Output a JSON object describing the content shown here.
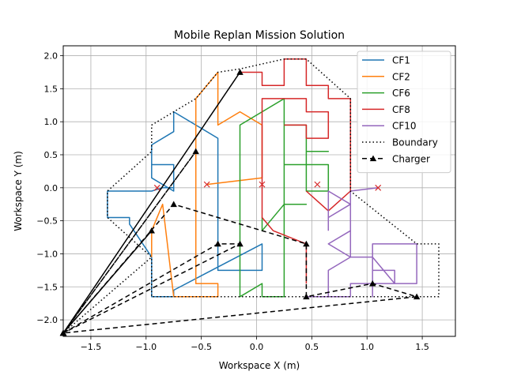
{
  "chart_data": {
    "type": "line",
    "title": "Mobile Replan Mission Solution",
    "xlabel": "Workspace X (m)",
    "ylabel": "Workspace Y (m)",
    "xlim": [
      -1.75,
      1.8
    ],
    "ylim": [
      -2.25,
      2.15
    ],
    "xticks": [
      -1.5,
      -1.0,
      -0.5,
      0.0,
      0.5,
      1.0,
      1.5
    ],
    "xtick_labels": [
      "−1.5",
      "−1.0",
      "−0.5",
      "0.0",
      "0.5",
      "1.0",
      "1.5"
    ],
    "yticks": [
      -2.0,
      -1.5,
      -1.0,
      -0.5,
      0.0,
      0.5,
      1.0,
      1.5,
      2.0
    ],
    "ytick_labels": [
      "−2.0",
      "−1.5",
      "−1.0",
      "−0.5",
      "0.0",
      "0.5",
      "1.0",
      "1.5",
      "2.0"
    ],
    "grid": true,
    "legend_position": "top-right",
    "series": [
      {
        "name": "CF1",
        "color": "#1f77b4",
        "style": "solid",
        "marker": "none",
        "points": [
          [
            -0.75,
            -1.65
          ],
          [
            -0.85,
            -1.65
          ],
          [
            -0.95,
            -1.65
          ],
          [
            -0.95,
            -1.05
          ],
          [
            -1.15,
            -0.55
          ],
          [
            -1.15,
            -0.45
          ],
          [
            -1.35,
            -0.45
          ],
          [
            -1.35,
            -0.05
          ],
          [
            -1.2,
            -0.05
          ],
          [
            -1.15,
            -0.05
          ],
          [
            -0.95,
            -0.05
          ],
          [
            -0.85,
            0.0
          ],
          [
            -0.75,
            0.0
          ],
          [
            -0.75,
            0.35
          ],
          [
            -0.95,
            0.35
          ],
          [
            -0.75,
            0.35
          ],
          [
            -0.75,
            -0.05
          ],
          [
            -0.95,
            0.15
          ],
          [
            -0.95,
            0.65
          ],
          [
            -0.75,
            0.85
          ],
          [
            -0.75,
            1.15
          ],
          [
            -0.35,
            0.75
          ],
          [
            -0.35,
            -1.25
          ],
          [
            0.05,
            -1.25
          ],
          [
            0.05,
            -0.85
          ],
          [
            -0.75,
            -1.55
          ],
          [
            -0.75,
            -1.65
          ]
        ]
      },
      {
        "name": "CF2",
        "color": "#ff7f0e",
        "style": "solid",
        "marker": "none",
        "points": [
          [
            -0.95,
            -1.05
          ],
          [
            -0.95,
            -0.65
          ],
          [
            -0.85,
            -0.25
          ],
          [
            -0.75,
            -1.65
          ],
          [
            -0.35,
            -1.65
          ],
          [
            -0.35,
            -1.45
          ],
          [
            -0.55,
            -1.45
          ],
          [
            -0.55,
            -0.85
          ],
          [
            -0.55,
            -0.05
          ],
          [
            -0.55,
            1.35
          ],
          [
            -0.35,
            1.75
          ],
          [
            -0.35,
            0.95
          ],
          [
            -0.15,
            1.15
          ],
          [
            0.05,
            0.95
          ],
          [
            0.05,
            0.15
          ],
          [
            -0.45,
            0.05
          ],
          [
            -0.45,
            0.05
          ]
        ]
      },
      {
        "name": "CF6",
        "color": "#2ca02c",
        "style": "solid",
        "marker": "none",
        "points": [
          [
            0.05,
            -0.45
          ],
          [
            0.05,
            -0.65
          ],
          [
            0.25,
            -0.25
          ],
          [
            0.45,
            -0.25
          ],
          [
            0.25,
            -0.25
          ],
          [
            0.25,
            0.35
          ],
          [
            0.45,
            0.35
          ],
          [
            0.45,
            -0.05
          ],
          [
            0.65,
            -0.05
          ],
          [
            0.65,
            0.35
          ],
          [
            0.45,
            0.35
          ],
          [
            0.45,
            0.55
          ],
          [
            0.65,
            0.55
          ],
          [
            0.45,
            0.55
          ],
          [
            0.45,
            0.95
          ],
          [
            0.25,
            0.95
          ],
          [
            0.25,
            1.35
          ],
          [
            -0.15,
            0.95
          ],
          [
            -0.15,
            -1.65
          ],
          [
            0.05,
            -1.45
          ],
          [
            0.05,
            -1.65
          ],
          [
            0.25,
            -1.65
          ],
          [
            0.25,
            -0.95
          ],
          [
            0.25,
            -0.25
          ],
          [
            0.25,
            0.95
          ]
        ]
      },
      {
        "name": "CF8",
        "color": "#d62728",
        "style": "solid",
        "marker": "none",
        "points": [
          [
            0.45,
            -1.45
          ],
          [
            0.45,
            -0.85
          ],
          [
            0.15,
            -0.65
          ],
          [
            0.05,
            -0.45
          ],
          [
            0.05,
            -0.45
          ],
          [
            0.05,
            0.05
          ],
          [
            0.05,
            1.35
          ],
          [
            0.45,
            1.35
          ],
          [
            0.45,
            1.15
          ],
          [
            0.65,
            1.15
          ],
          [
            0.65,
            0.75
          ],
          [
            0.45,
            0.75
          ],
          [
            0.45,
            0.95
          ],
          [
            0.25,
            0.95
          ],
          [
            0.25,
            0.95
          ]
        ]
      },
      {
        "name": "CF8",
        "color": "#d62728",
        "style": "solid",
        "marker": "none",
        "points": [
          [
            -0.15,
            1.75
          ],
          [
            0.05,
            1.75
          ],
          [
            0.05,
            1.55
          ],
          [
            0.25,
            1.55
          ],
          [
            0.25,
            1.95
          ],
          [
            0.45,
            1.95
          ],
          [
            0.45,
            1.55
          ],
          [
            0.65,
            1.55
          ],
          [
            0.65,
            1.35
          ],
          [
            0.85,
            1.35
          ],
          [
            0.85,
            -0.05
          ],
          [
            0.65,
            -0.35
          ],
          [
            0.45,
            -0.05
          ],
          [
            0.45,
            -0.05
          ]
        ]
      },
      {
        "name": "CF10",
        "color": "#9467bd",
        "style": "solid",
        "marker": "none",
        "points": [
          [
            0.65,
            -0.65
          ],
          [
            0.65,
            -0.05
          ],
          [
            0.85,
            -0.25
          ],
          [
            0.65,
            -0.45
          ],
          [
            0.85,
            -0.25
          ],
          [
            0.85,
            -0.65
          ],
          [
            0.65,
            -0.85
          ],
          [
            0.85,
            -1.05
          ],
          [
            0.65,
            -1.25
          ],
          [
            0.65,
            -1.65
          ],
          [
            0.45,
            -1.65
          ],
          [
            0.85,
            -1.65
          ],
          [
            0.85,
            -1.45
          ],
          [
            1.05,
            -1.45
          ],
          [
            1.05,
            -1.25
          ],
          [
            1.25,
            -1.25
          ],
          [
            1.25,
            -1.45
          ],
          [
            1.45,
            -1.45
          ],
          [
            1.45,
            -0.85
          ],
          [
            1.05,
            -0.85
          ],
          [
            1.05,
            -1.45
          ],
          [
            1.05,
            -1.65
          ],
          [
            1.05,
            -1.45
          ],
          [
            1.25,
            -1.45
          ],
          [
            1.05,
            -1.05
          ],
          [
            0.85,
            -1.05
          ],
          [
            0.85,
            -0.65
          ],
          [
            0.85,
            -0.05
          ],
          [
            1.1,
            0.0
          ]
        ]
      },
      {
        "name": "Boundary",
        "color": "#000000",
        "style": "dotted",
        "marker": "none",
        "points": [
          [
            -1.75,
            -2.2
          ],
          [
            -0.95,
            -1.05
          ],
          [
            -1.35,
            -0.45
          ],
          [
            -1.35,
            -0.05
          ],
          [
            -0.95,
            0.55
          ],
          [
            -0.95,
            0.95
          ],
          [
            -0.75,
            1.15
          ],
          [
            -0.55,
            1.35
          ],
          [
            -0.35,
            1.75
          ],
          [
            -0.15,
            1.8
          ],
          [
            0.25,
            1.95
          ],
          [
            0.45,
            1.95
          ],
          [
            0.85,
            1.35
          ],
          [
            0.85,
            -0.05
          ],
          [
            1.45,
            -0.85
          ],
          [
            1.65,
            -0.85
          ],
          [
            1.65,
            -1.65
          ],
          [
            1.45,
            -1.65
          ],
          [
            0.45,
            -1.65
          ],
          [
            -0.75,
            -1.65
          ],
          [
            -0.95,
            -1.65
          ],
          [
            -0.95,
            -1.05
          ]
        ]
      },
      {
        "name": "Charger",
        "color": "#000000",
        "style": "dashed",
        "marker": "triangle",
        "points": [
          [
            -1.75,
            -2.2
          ],
          [
            -0.55,
            0.55
          ],
          [
            -1.75,
            -2.2
          ],
          [
            -0.95,
            -0.65
          ],
          [
            -1.75,
            -2.2
          ],
          [
            -0.15,
            1.75
          ],
          [
            -1.75,
            -2.2
          ],
          [
            -0.75,
            -0.25
          ],
          [
            0.45,
            -0.85
          ],
          [
            0.45,
            -1.65
          ],
          [
            1.05,
            -1.45
          ],
          [
            1.45,
            -1.65
          ],
          [
            -1.75,
            -2.2
          ],
          [
            -0.35,
            -0.85
          ],
          [
            -0.15,
            -0.85
          ],
          [
            -1.75,
            -2.2
          ]
        ]
      }
    ],
    "goal_markers": {
      "marker": "x",
      "color": "#d62728",
      "points": [
        [
          -0.9,
          0.0
        ],
        [
          -0.45,
          0.05
        ],
        [
          0.05,
          0.05
        ],
        [
          0.55,
          0.05
        ],
        [
          1.1,
          0.0
        ]
      ]
    },
    "legend": [
      {
        "label": "CF1",
        "color": "#1f77b4",
        "style": "solid"
      },
      {
        "label": "CF2",
        "color": "#ff7f0e",
        "style": "solid"
      },
      {
        "label": "CF6",
        "color": "#2ca02c",
        "style": "solid"
      },
      {
        "label": "CF8",
        "color": "#d62728",
        "style": "solid"
      },
      {
        "label": "CF10",
        "color": "#9467bd",
        "style": "solid"
      },
      {
        "label": "Boundary",
        "color": "#000000",
        "style": "dotted"
      },
      {
        "label": "Charger",
        "color": "#000000",
        "style": "dashed-triangle"
      }
    ]
  }
}
